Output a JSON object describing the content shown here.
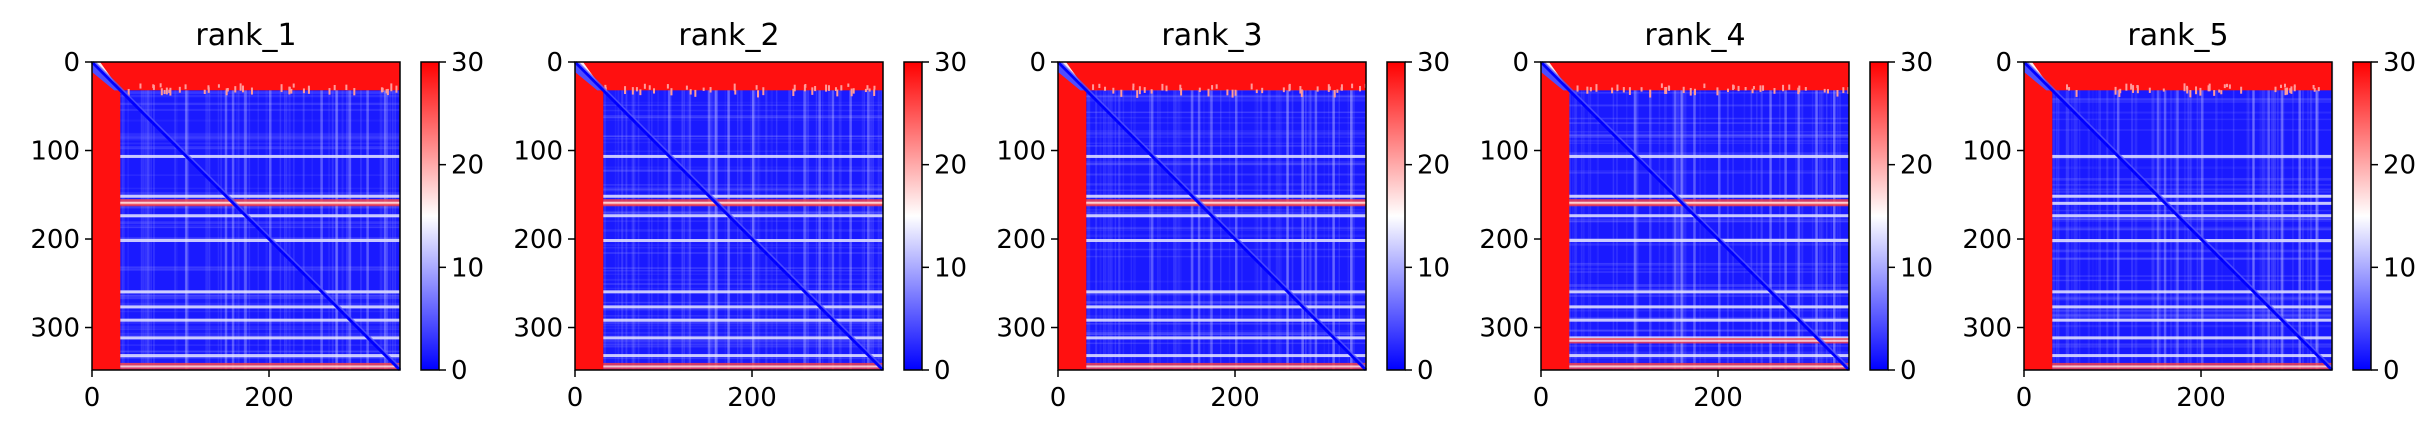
{
  "chart_data": [
    {
      "type": "heatmap",
      "title": "rank_1",
      "xlim": [
        0,
        348
      ],
      "ylim": [
        348,
        0
      ],
      "x_ticks": [
        0,
        200
      ],
      "y_ticks": [
        0,
        100,
        200,
        300
      ],
      "colorbar": {
        "min": 0,
        "max": 30,
        "ticks": [
          0,
          10,
          20,
          30
        ],
        "colormap": [
          "#0000ff",
          "#ffffff",
          "#ff0000"
        ]
      },
      "high_bands": [
        {
          "from": 0,
          "to": 32,
          "side": "edge"
        },
        {
          "from": 155,
          "to": 163,
          "side": "row"
        },
        {
          "from": 340,
          "to": 348,
          "side": "row"
        }
      ],
      "light_rows": [
        105,
        150,
        158,
        172,
        200,
        258,
        275,
        290,
        310,
        330
      ],
      "diagonal": true
    },
    {
      "type": "heatmap",
      "title": "rank_2",
      "xlim": [
        0,
        348
      ],
      "ylim": [
        348,
        0
      ],
      "x_ticks": [
        0,
        200
      ],
      "y_ticks": [
        0,
        100,
        200,
        300
      ],
      "colorbar": {
        "min": 0,
        "max": 30,
        "ticks": [
          0,
          10,
          20,
          30
        ],
        "colormap": [
          "#0000ff",
          "#ffffff",
          "#ff0000"
        ]
      },
      "high_bands": [
        {
          "from": 0,
          "to": 32,
          "side": "edge"
        },
        {
          "from": 155,
          "to": 163,
          "side": "row"
        },
        {
          "from": 340,
          "to": 348,
          "side": "row"
        }
      ],
      "light_rows": [
        105,
        150,
        158,
        172,
        200,
        258,
        275,
        290,
        310,
        330
      ],
      "diagonal": true
    },
    {
      "type": "heatmap",
      "title": "rank_3",
      "xlim": [
        0,
        348
      ],
      "ylim": [
        348,
        0
      ],
      "x_ticks": [
        0,
        200
      ],
      "y_ticks": [
        0,
        100,
        200,
        300
      ],
      "colorbar": {
        "min": 0,
        "max": 30,
        "ticks": [
          0,
          10,
          20,
          30
        ],
        "colormap": [
          "#0000ff",
          "#ffffff",
          "#ff0000"
        ]
      },
      "high_bands": [
        {
          "from": 0,
          "to": 32,
          "side": "edge"
        },
        {
          "from": 155,
          "to": 163,
          "side": "row"
        },
        {
          "from": 340,
          "to": 348,
          "side": "row"
        }
      ],
      "light_rows": [
        105,
        150,
        158,
        172,
        200,
        258,
        275,
        290,
        310,
        330
      ],
      "diagonal": true
    },
    {
      "type": "heatmap",
      "title": "rank_4",
      "xlim": [
        0,
        348
      ],
      "ylim": [
        348,
        0
      ],
      "x_ticks": [
        0,
        200
      ],
      "y_ticks": [
        0,
        100,
        200,
        300
      ],
      "colorbar": {
        "min": 0,
        "max": 30,
        "ticks": [
          0,
          10,
          20,
          30
        ],
        "colormap": [
          "#0000ff",
          "#ffffff",
          "#ff0000"
        ]
      },
      "high_bands": [
        {
          "from": 0,
          "to": 32,
          "side": "edge"
        },
        {
          "from": 155,
          "to": 163,
          "side": "row"
        },
        {
          "from": 312,
          "to": 318,
          "side": "row"
        },
        {
          "from": 340,
          "to": 348,
          "side": "row"
        }
      ],
      "light_rows": [
        105,
        150,
        158,
        172,
        200,
        258,
        275,
        290,
        310,
        330
      ],
      "diagonal": true
    },
    {
      "type": "heatmap",
      "title": "rank_5",
      "xlim": [
        0,
        348
      ],
      "ylim": [
        348,
        0
      ],
      "x_ticks": [
        0,
        200
      ],
      "y_ticks": [
        0,
        100,
        200,
        300
      ],
      "colorbar": {
        "min": 0,
        "max": 30,
        "ticks": [
          0,
          10,
          20,
          30
        ],
        "colormap": [
          "#0000ff",
          "#ffffff",
          "#ff0000"
        ]
      },
      "high_bands": [
        {
          "from": 0,
          "to": 32,
          "side": "edge"
        },
        {
          "from": 340,
          "to": 348,
          "side": "row"
        }
      ],
      "light_rows": [
        105,
        150,
        158,
        172,
        200,
        258,
        275,
        290,
        310,
        330
      ],
      "diagonal": true
    }
  ]
}
